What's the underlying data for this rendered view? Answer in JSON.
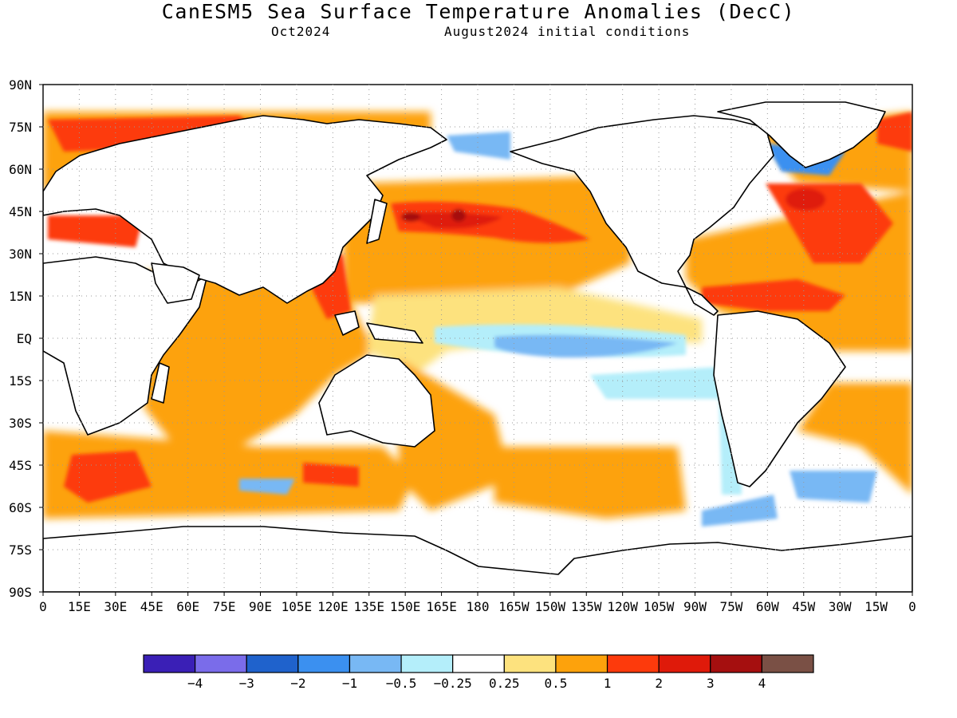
{
  "title": "CanESM5 Sea Surface Temperature Anomalies (DecC)",
  "subtitle_left": "Oct2024",
  "subtitle_right": "August2024 initial conditions",
  "lat_labels": [
    "90N",
    "75N",
    "60N",
    "45N",
    "30N",
    "15N",
    "EQ",
    "15S",
    "30S",
    "45S",
    "60S",
    "75S",
    "90S"
  ],
  "lon_labels": [
    "0",
    "15E",
    "30E",
    "45E",
    "60E",
    "75E",
    "90E",
    "105E",
    "120E",
    "135E",
    "150E",
    "165E",
    "180",
    "165W",
    "150W",
    "135W",
    "120W",
    "105W",
    "90W",
    "75W",
    "60W",
    "45W",
    "30W",
    "15W",
    "0"
  ],
  "colorbar": {
    "colors": [
      "#3a1fb6",
      "#7a6cea",
      "#1f62cc",
      "#3b90f0",
      "#78b8f4",
      "#b4eefa",
      "#ffffff",
      "#fde27e",
      "#fda20c",
      "#fd3a0c",
      "#df1a0a",
      "#a50f0f",
      "#7a5045"
    ],
    "labels": [
      "-4",
      "-3",
      "-2",
      "-1",
      "-0.5",
      "-0.25",
      "0.25",
      "0.5",
      "1",
      "2",
      "3",
      "4"
    ]
  }
}
